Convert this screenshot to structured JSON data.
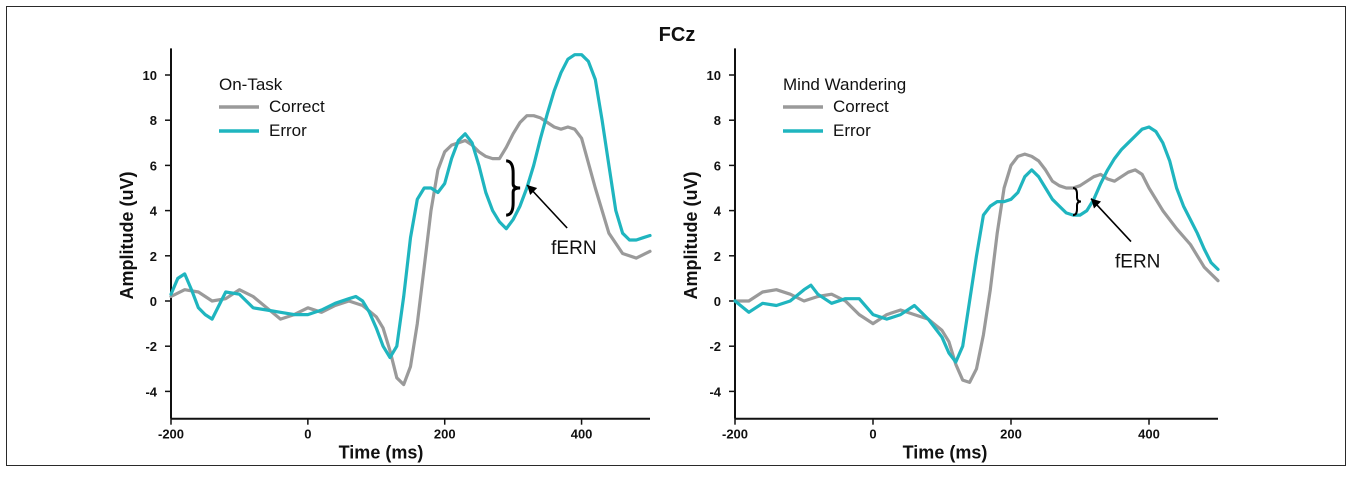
{
  "title": "FCz",
  "colors": {
    "correct": "#9a9a9a",
    "error": "#1fb5bf",
    "axis": "#111111"
  },
  "chart_data": [
    {
      "type": "line",
      "name": "On-Task",
      "xlabel": "Time (ms)",
      "ylabel": "Amplitude (uV)",
      "xlim": [
        -200,
        500
      ],
      "ylim": [
        -4.5,
        11
      ],
      "xticks": [
        -200,
        0,
        200,
        400
      ],
      "yticks": [
        -4,
        -2,
        0,
        2,
        4,
        6,
        8,
        10
      ],
      "legend_title": "On-Task",
      "legend_placement": "top-left",
      "annotation": {
        "text": "fERN",
        "x": 300,
        "y_top": 6.2,
        "y_bottom": 3.8
      },
      "series": [
        {
          "name": "Correct",
          "color": "#9a9a9a",
          "x": [
            -200,
            -180,
            -160,
            -140,
            -120,
            -100,
            -80,
            -60,
            -40,
            -20,
            0,
            20,
            40,
            60,
            80,
            100,
            110,
            120,
            130,
            140,
            150,
            160,
            170,
            180,
            190,
            200,
            210,
            220,
            230,
            240,
            250,
            260,
            270,
            280,
            290,
            300,
            310,
            320,
            330,
            340,
            350,
            360,
            370,
            380,
            390,
            400,
            420,
            440,
            460,
            480,
            500
          ],
          "y": [
            0.2,
            0.5,
            0.4,
            0.0,
            0.1,
            0.5,
            0.2,
            -0.3,
            -0.8,
            -0.6,
            -0.3,
            -0.5,
            -0.2,
            0.0,
            -0.2,
            -0.7,
            -1.2,
            -2.2,
            -3.4,
            -3.7,
            -2.9,
            -1.0,
            1.5,
            4.0,
            5.8,
            6.6,
            6.9,
            7.0,
            7.1,
            6.9,
            6.6,
            6.4,
            6.3,
            6.3,
            6.8,
            7.4,
            7.9,
            8.2,
            8.2,
            8.1,
            7.9,
            7.7,
            7.6,
            7.7,
            7.6,
            7.2,
            5.0,
            3.0,
            2.1,
            1.9,
            2.2
          ]
        },
        {
          "name": "Error",
          "color": "#1fb5bf",
          "x": [
            -200,
            -190,
            -180,
            -170,
            -160,
            -150,
            -140,
            -120,
            -100,
            -80,
            -60,
            -40,
            -20,
            0,
            20,
            40,
            60,
            70,
            80,
            90,
            100,
            110,
            120,
            130,
            140,
            150,
            160,
            170,
            180,
            190,
            200,
            210,
            220,
            230,
            240,
            250,
            260,
            270,
            280,
            290,
            300,
            310,
            320,
            330,
            340,
            350,
            360,
            370,
            380,
            390,
            400,
            410,
            420,
            430,
            440,
            450,
            460,
            470,
            480,
            490,
            500
          ],
          "y": [
            0.3,
            1.0,
            1.2,
            0.5,
            -0.3,
            -0.6,
            -0.8,
            0.4,
            0.3,
            -0.3,
            -0.4,
            -0.5,
            -0.6,
            -0.6,
            -0.4,
            -0.1,
            0.1,
            0.2,
            0.0,
            -0.5,
            -1.2,
            -2.0,
            -2.5,
            -2.0,
            0.2,
            2.8,
            4.5,
            5.0,
            5.0,
            4.8,
            5.2,
            6.3,
            7.1,
            7.4,
            7.0,
            6.0,
            4.8,
            4.0,
            3.5,
            3.2,
            3.6,
            4.2,
            5.0,
            6.0,
            7.2,
            8.3,
            9.3,
            10.1,
            10.7,
            10.9,
            10.9,
            10.6,
            9.8,
            8.0,
            6.0,
            4.0,
            3.0,
            2.7,
            2.7,
            2.8,
            2.9
          ]
        }
      ]
    },
    {
      "type": "line",
      "name": "Mind Wandering",
      "xlabel": "Time (ms)",
      "ylabel": "Amplitude (uV)",
      "xlim": [
        -200,
        500
      ],
      "ylim": [
        -4.5,
        11
      ],
      "xticks": [
        -200,
        0,
        200,
        400
      ],
      "yticks": [
        -4,
        -2,
        0,
        2,
        4,
        6,
        8,
        10
      ],
      "legend_title": "Mind Wandering",
      "legend_placement": "top-left",
      "annotation": {
        "text": "fERN",
        "x": 300,
        "y_top": 5.0,
        "y_bottom": 3.8
      },
      "series": [
        {
          "name": "Correct",
          "color": "#9a9a9a",
          "x": [
            -200,
            -180,
            -160,
            -140,
            -120,
            -100,
            -80,
            -60,
            -40,
            -20,
            0,
            20,
            40,
            60,
            80,
            100,
            110,
            120,
            130,
            140,
            150,
            160,
            170,
            180,
            190,
            200,
            210,
            220,
            230,
            240,
            250,
            260,
            270,
            280,
            290,
            300,
            310,
            320,
            330,
            340,
            350,
            360,
            370,
            380,
            390,
            400,
            420,
            440,
            460,
            480,
            500
          ],
          "y": [
            0.0,
            0.0,
            0.4,
            0.5,
            0.3,
            0.0,
            0.2,
            0.3,
            0.0,
            -0.6,
            -1.0,
            -0.6,
            -0.4,
            -0.6,
            -0.8,
            -1.3,
            -1.8,
            -2.8,
            -3.5,
            -3.6,
            -3.0,
            -1.5,
            0.5,
            3.0,
            5.0,
            6.0,
            6.4,
            6.5,
            6.4,
            6.2,
            5.8,
            5.3,
            5.1,
            5.0,
            5.0,
            5.1,
            5.3,
            5.5,
            5.6,
            5.4,
            5.3,
            5.5,
            5.7,
            5.8,
            5.6,
            5.0,
            4.0,
            3.2,
            2.5,
            1.5,
            0.9
          ]
        },
        {
          "name": "Error",
          "color": "#1fb5bf",
          "x": [
            -200,
            -180,
            -170,
            -160,
            -140,
            -120,
            -100,
            -90,
            -80,
            -60,
            -40,
            -20,
            0,
            20,
            40,
            60,
            70,
            80,
            90,
            100,
            110,
            120,
            130,
            140,
            150,
            160,
            170,
            180,
            190,
            200,
            210,
            220,
            230,
            240,
            250,
            260,
            270,
            280,
            290,
            300,
            310,
            320,
            330,
            340,
            350,
            360,
            370,
            380,
            390,
            400,
            410,
            420,
            430,
            440,
            450,
            460,
            470,
            480,
            490,
            500
          ],
          "y": [
            0.0,
            -0.5,
            -0.3,
            -0.1,
            -0.2,
            0.0,
            0.5,
            0.7,
            0.3,
            -0.1,
            0.1,
            0.1,
            -0.6,
            -0.8,
            -0.6,
            -0.2,
            -0.5,
            -0.8,
            -1.2,
            -1.6,
            -2.3,
            -2.7,
            -2.0,
            0.0,
            2.0,
            3.8,
            4.2,
            4.4,
            4.4,
            4.5,
            4.8,
            5.5,
            5.8,
            5.5,
            5.0,
            4.5,
            4.2,
            3.9,
            3.8,
            3.8,
            4.0,
            4.5,
            5.2,
            5.8,
            6.3,
            6.7,
            7.0,
            7.3,
            7.6,
            7.7,
            7.5,
            7.0,
            6.2,
            5.0,
            4.2,
            3.6,
            3.0,
            2.3,
            1.7,
            1.4
          ]
        }
      ]
    }
  ]
}
